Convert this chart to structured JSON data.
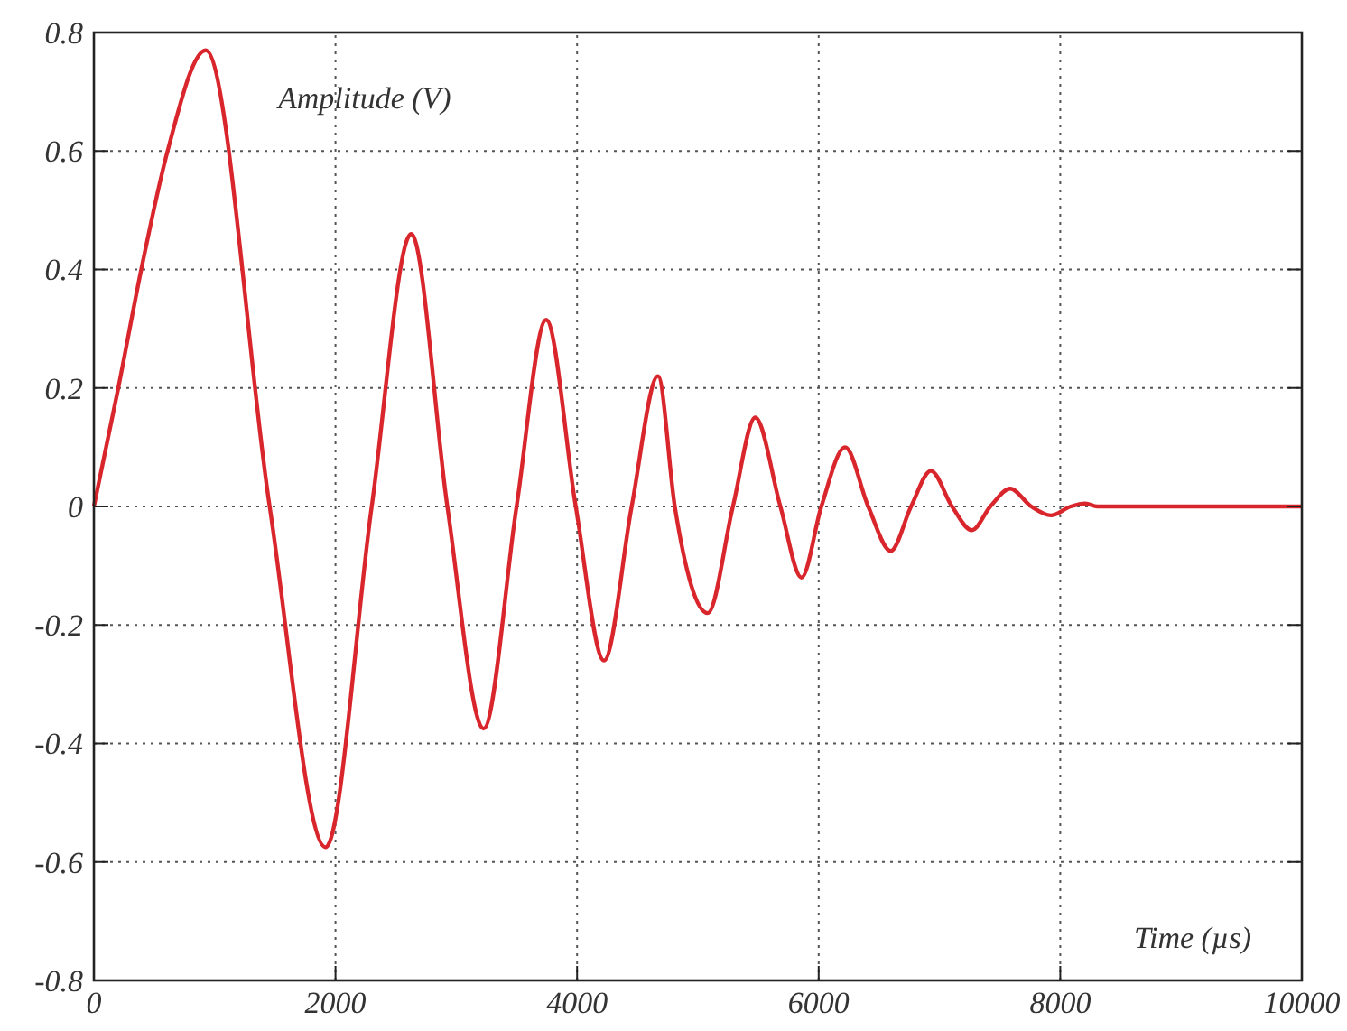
{
  "chart_data": {
    "type": "line",
    "xlabel": "Time (µs)",
    "ylabel": "Amplitude (V)",
    "xlim": [
      0,
      10000
    ],
    "xticks": [
      0,
      2000,
      4000,
      6000,
      8000,
      10000
    ],
    "ylim": [
      -0.8,
      0.8
    ],
    "yticks": [
      -0.8,
      -0.6,
      -0.4,
      -0.2,
      0,
      0.2,
      0.4,
      0.6,
      0.8
    ],
    "grid": true,
    "line_style": "solid",
    "x": [
      0,
      202,
      392,
      610,
      926,
      1455,
      1918,
      2300,
      2627,
      2926,
      3226,
      3499,
      3744,
      3989,
      4223,
      4452,
      4670,
      4809,
      5082,
      5290,
      5475,
      5683,
      5858,
      6022,
      6219,
      6410,
      6596,
      6765,
      6929,
      7104,
      7268,
      7421,
      7585,
      7760,
      7923,
      8087,
      8208,
      8306,
      10000
    ],
    "series": [
      {
        "color": "#d9262c",
        "values": [
          0,
          0.2,
          0.4,
          0.6,
          0.77,
          0,
          -0.575,
          0,
          0.46,
          0,
          -0.375,
          0,
          0.315,
          0,
          -0.26,
          0,
          0.22,
          0,
          -0.18,
          0,
          0.15,
          0,
          -0.12,
          0,
          0.1,
          0,
          -0.075,
          0,
          0.06,
          0,
          -0.04,
          0,
          0.03,
          0,
          -0.015,
          0,
          0.005,
          0,
          0
        ]
      }
    ]
  }
}
